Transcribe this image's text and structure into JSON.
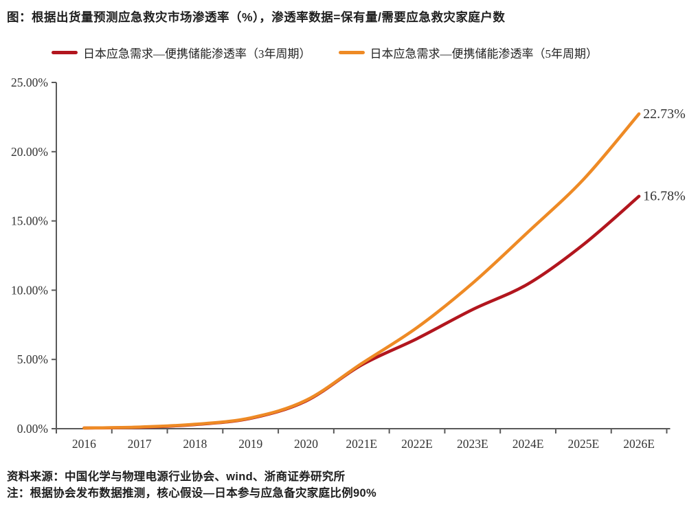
{
  "title": "图：根据出货量预测应急救灾市场渗透率（%），渗透率数据=保有量/需要应急救灾家庭户数",
  "colors": {
    "series_3yr": "#b2161e",
    "series_5yr": "#ee8a25",
    "axis": "#595959",
    "tick_label": "#333333",
    "end_label": "#333333"
  },
  "legend": {
    "items": [
      {
        "label": "日本应急需求—便携储能渗透率（3年周期）",
        "color": "#b2161e"
      },
      {
        "label": "日本应急需求—便携储能渗透率（5年周期）",
        "color": "#ee8a25"
      }
    ]
  },
  "chart_data": {
    "type": "line",
    "categories": [
      "2016",
      "2017",
      "2018",
      "2019",
      "2020",
      "2021E",
      "2022E",
      "2023E",
      "2024E",
      "2025E",
      "2026E"
    ],
    "series": [
      {
        "name": "日本应急需求—便携储能渗透率（3年周期）",
        "color": "#b2161e",
        "values": [
          0.05,
          0.1,
          0.3,
          0.75,
          2.0,
          4.6,
          6.5,
          8.6,
          10.45,
          13.3,
          16.78
        ],
        "end_label": "16.78%"
      },
      {
        "name": "日本应急需求—便携储能渗透率（5年周期）",
        "color": "#ee8a25",
        "values": [
          0.05,
          0.12,
          0.32,
          0.78,
          2.05,
          4.7,
          7.3,
          10.5,
          14.2,
          18.0,
          22.73
        ],
        "end_label": "22.73%"
      }
    ],
    "ylim": [
      0,
      25
    ],
    "ytick_labels": [
      "0.00%",
      "5.00%",
      "10.00%",
      "15.00%",
      "20.00%",
      "25.00%"
    ],
    "ytick_values": [
      0,
      5,
      10,
      15,
      20,
      25
    ],
    "grid": false,
    "legend_position": "top",
    "xlabel": "",
    "ylabel": ""
  },
  "footer": {
    "line1": "资料来源：中国化学与物理电源行业协会、wind、浙商证券研究所",
    "line2": "注：根据协会发布数据推测，核心假设—日本参与应急备灾家庭比例90%"
  }
}
